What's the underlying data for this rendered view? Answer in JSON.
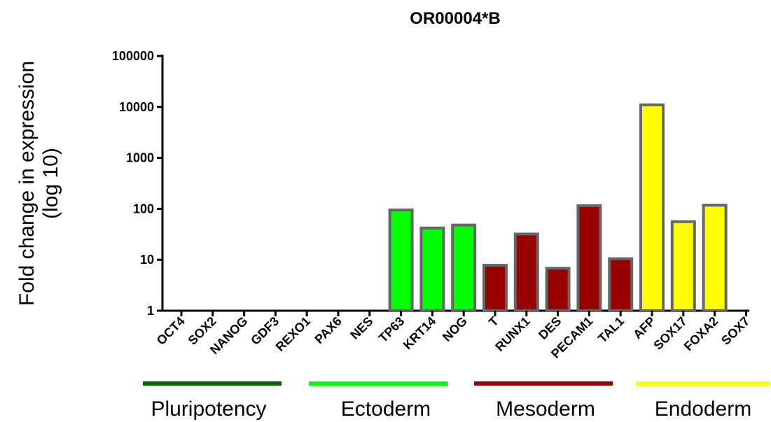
{
  "chart_data": {
    "type": "bar",
    "title": "OR00004*B",
    "ylabel": [
      "Fold change in expression",
      "(log 10)"
    ],
    "xlabel": "",
    "yscale": "log",
    "ylim": [
      1,
      100000
    ],
    "yticks": [
      {
        "value": 1,
        "label": "1"
      },
      {
        "value": 10,
        "label": "10"
      },
      {
        "value": 100,
        "label": "100"
      },
      {
        "value": 1000,
        "label": "1000"
      },
      {
        "value": 10000,
        "label": "10000"
      },
      {
        "value": 100000,
        "label": "100000"
      }
    ],
    "grid": false,
    "categories": [
      "OCT4",
      "SOX2",
      "NANOG",
      "GDF3",
      "REXO1",
      "PAX6",
      "NES",
      "TP63",
      "KRT14",
      "NOG",
      "T",
      "RUNX1",
      "DES",
      "PECAM1",
      "TAL1",
      "AFP",
      "SOX17",
      "FOXA2",
      "SOX7"
    ],
    "values": [
      1,
      1,
      1,
      1,
      1,
      1,
      1,
      95,
      42,
      48,
      7.8,
      32,
      6.8,
      115,
      10.5,
      11000,
      56,
      118,
      1
    ],
    "bar_colors": [
      "#00ff00",
      "#00ff00",
      "#00ff00",
      "#00ff00",
      "#00ff00",
      "#00ff00",
      "#00ff00",
      "#00ff00",
      "#00ff00",
      "#00ff00",
      "#990000",
      "#990000",
      "#990000",
      "#990000",
      "#990000",
      "#ffff00",
      "#ffff00",
      "#ffff00",
      "#ffff00"
    ],
    "bar_edge_color": "#666666",
    "groups": [
      {
        "name": "Pluripotency",
        "color": "#006400",
        "categories": [
          "OCT4",
          "SOX2",
          "NANOG",
          "GDF3",
          "REXO1"
        ]
      },
      {
        "name": "Ectoderm",
        "color": "#00ff00",
        "categories": [
          "PAX6",
          "NES",
          "TP63",
          "KRT14",
          "NOG"
        ]
      },
      {
        "name": "Mesoderm",
        "color": "#990000",
        "categories": [
          "T",
          "RUNX1",
          "DES",
          "PECAM1",
          "TAL1"
        ]
      },
      {
        "name": "Endoderm",
        "color": "#ffff00",
        "categories": [
          "AFP",
          "SOX17",
          "FOXA2",
          "SOX7"
        ]
      }
    ]
  }
}
